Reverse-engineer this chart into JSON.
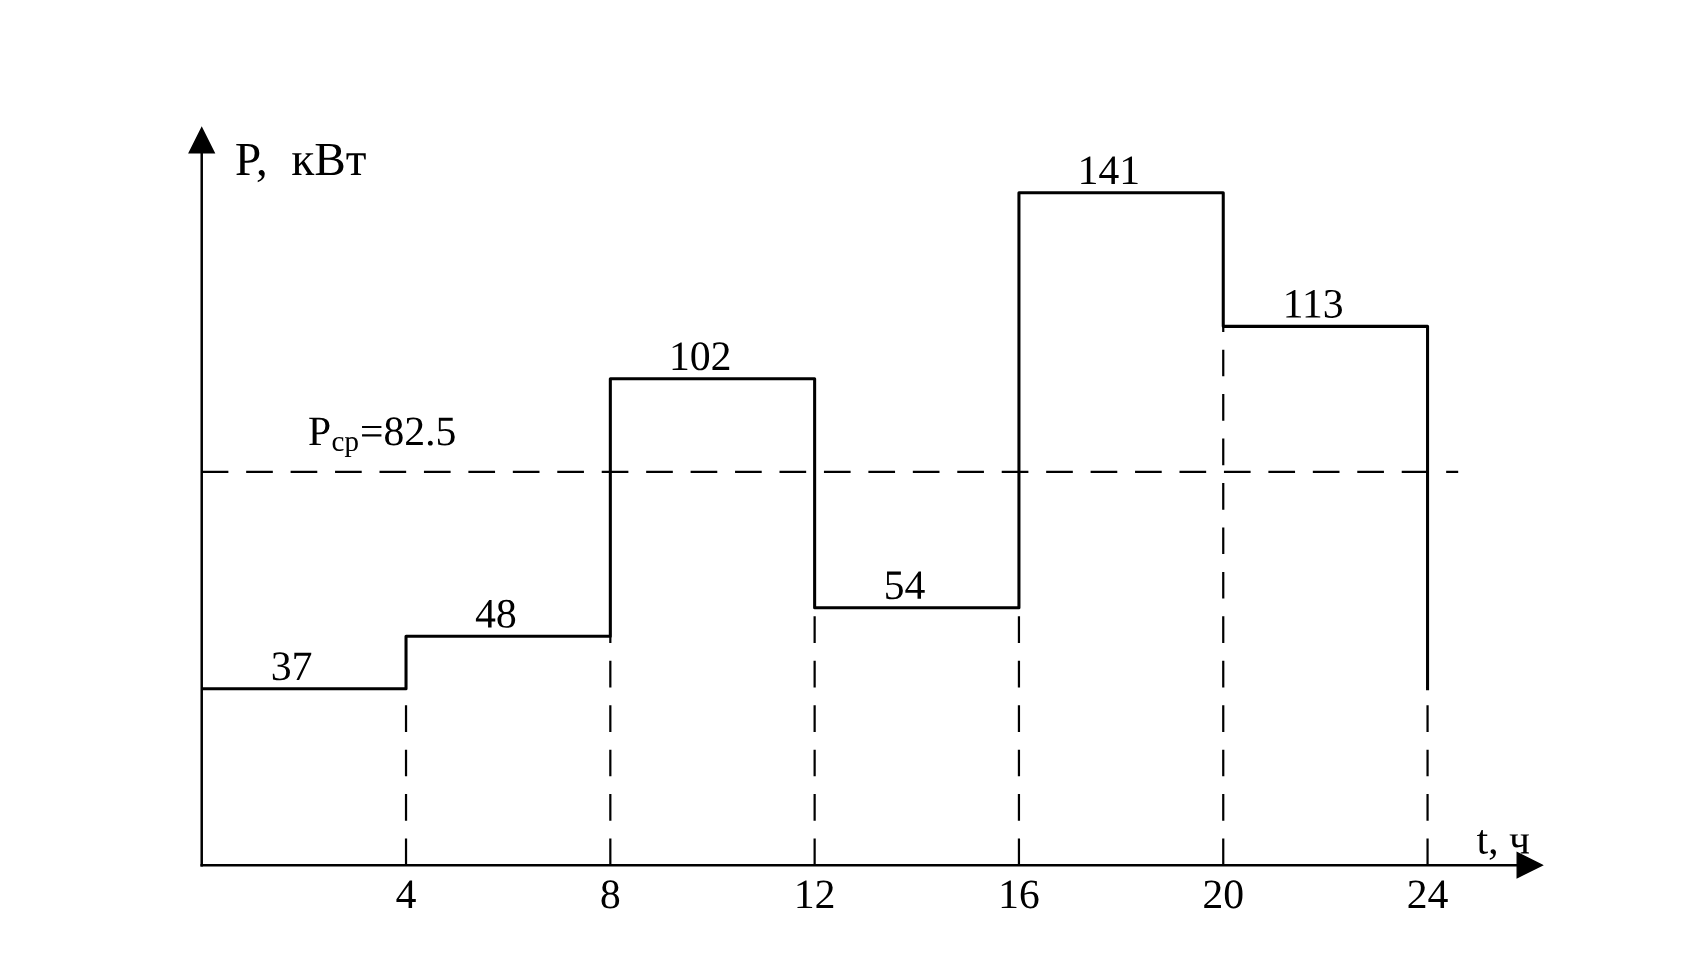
{
  "chart_data": {
    "type": "step",
    "xlabel": "t, ч",
    "ylabel": "P,  кВт",
    "x": [
      0,
      4,
      8,
      12,
      16,
      20,
      24
    ],
    "values": [
      37,
      48,
      102,
      54,
      141,
      113,
      37
    ],
    "value_labels": [
      "37",
      "48",
      "102",
      "54",
      "141",
      "113",
      null
    ],
    "color": "#000000",
    "line_style": "solid",
    "marker": "none",
    "xlim": [
      0,
      26
    ],
    "xticks": [
      4,
      8,
      12,
      16,
      20,
      24
    ],
    "ylim": [
      0,
      152
    ],
    "tick_labels": "x",
    "grid": false,
    "legend": false,
    "ref_lines": [
      {
        "axis": "y",
        "value": 82.5,
        "label": "P$_{ср}$=82.5",
        "line_style": "dashed",
        "color": "#000000"
      },
      {
        "axis": "x",
        "value": 4,
        "line_style": "dashed",
        "color": "#000000"
      },
      {
        "axis": "x",
        "value": 8,
        "line_style": "dashed",
        "color": "#000000"
      },
      {
        "axis": "x",
        "value": 12,
        "line_style": "dashed",
        "color": "#000000"
      },
      {
        "axis": "x",
        "value": 16,
        "line_style": "dashed",
        "color": "#000000"
      },
      {
        "axis": "x",
        "value": 20,
        "line_style": "dashed",
        "color": "#000000"
      },
      {
        "axis": "x",
        "value": 24,
        "line_style": "dashed",
        "color": "#000000"
      }
    ]
  }
}
